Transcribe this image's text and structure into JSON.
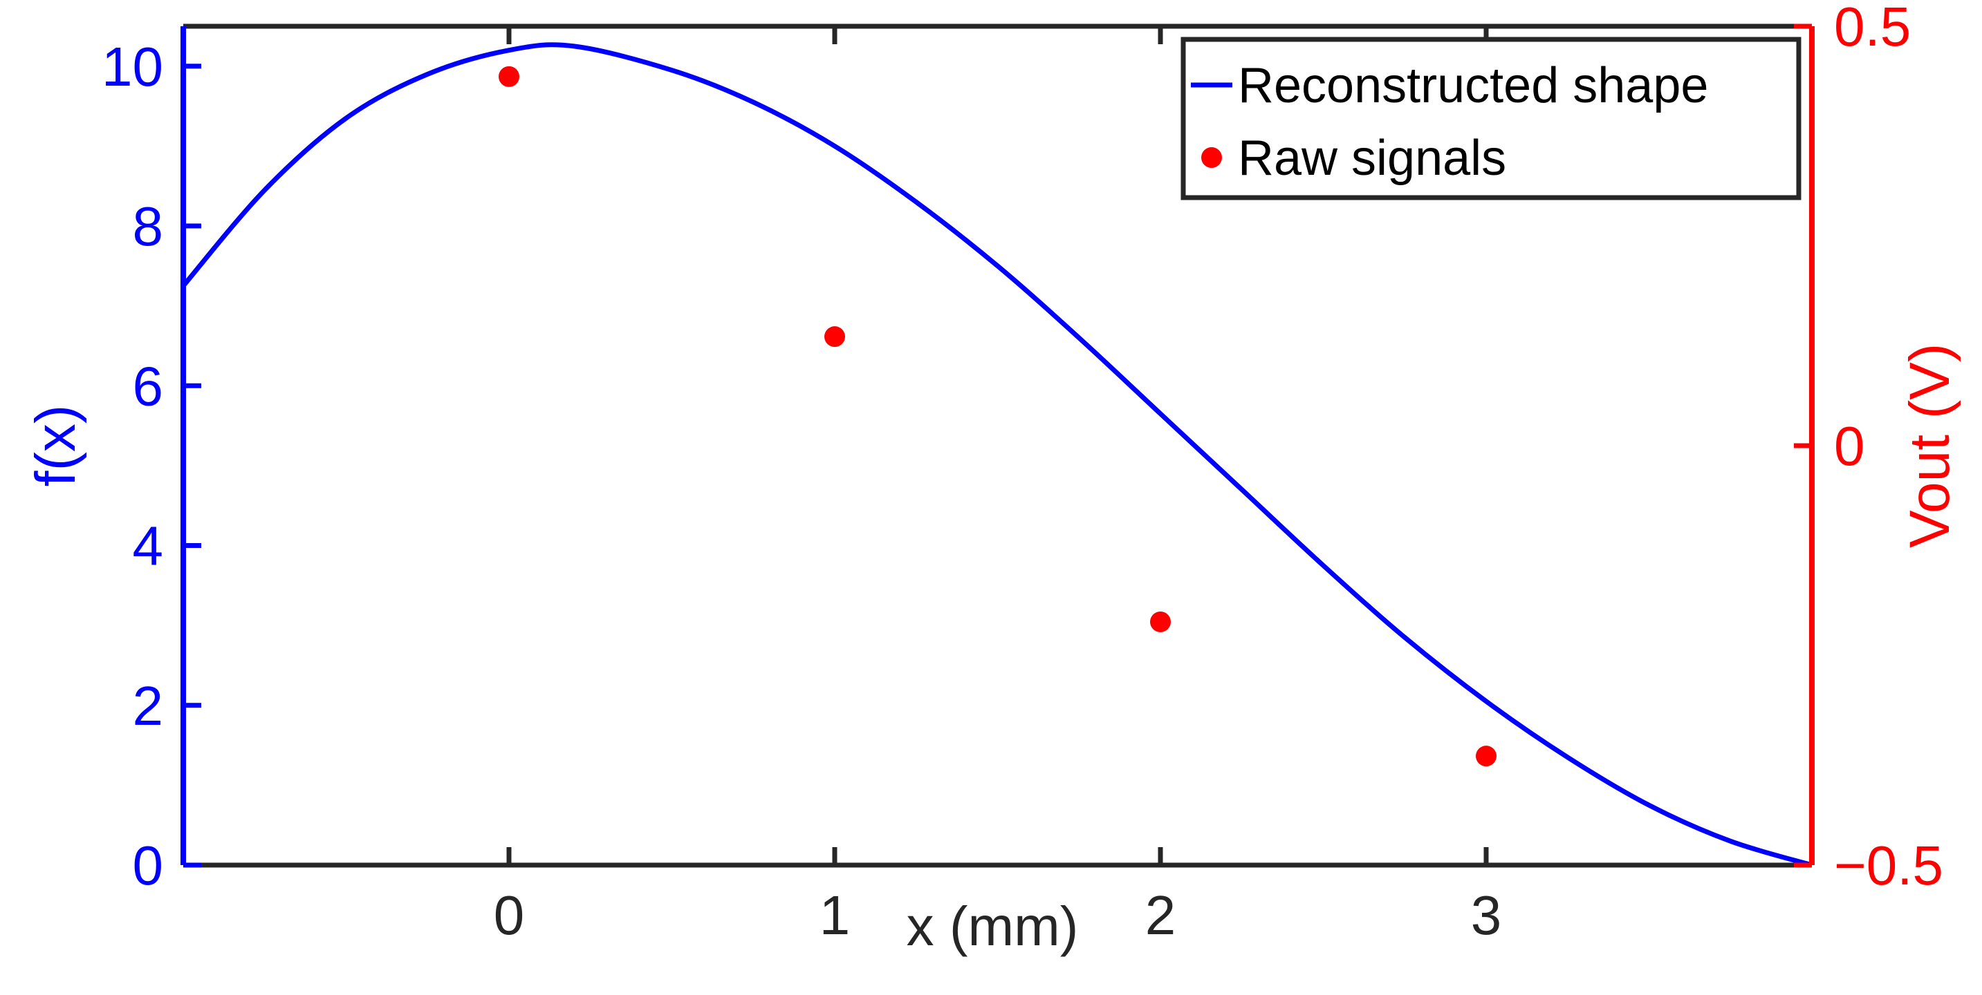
{
  "chart_data": {
    "type": "line+scatter",
    "title": "",
    "xlabel": "x (mm)",
    "ylabel_left": "f(x)",
    "ylabel_right": "Vout (V)",
    "xlim": [
      -1,
      4
    ],
    "ylim_left": [
      0,
      10.5
    ],
    "ylim_right": [
      -0.5,
      0.5
    ],
    "x_ticks": [
      0,
      1,
      2,
      3
    ],
    "x_tick_labels": [
      "0",
      "1",
      "2",
      "3"
    ],
    "y_left_ticks": [
      0,
      2,
      4,
      6,
      8,
      10
    ],
    "y_left_tick_labels": [
      "0",
      "2",
      "4",
      "6",
      "8",
      "10"
    ],
    "y_right_ticks": [
      -0.5,
      0,
      0.5
    ],
    "y_right_tick_labels": [
      "−0.5",
      "0",
      "0.5"
    ],
    "colors": {
      "left_axis": "#0000ff",
      "right_axis": "#ff0000",
      "frame": "#262626"
    },
    "series": [
      {
        "name": "Reconstructed shape",
        "kind": "line",
        "axis": "left",
        "color": "#0000ff",
        "x": [
          -1,
          -0.75,
          -0.5,
          -0.25,
          0,
          0.2,
          0.5,
          0.75,
          1,
          1.25,
          1.5,
          1.75,
          2,
          2.25,
          2.5,
          2.75,
          3,
          3.25,
          3.5,
          3.75,
          4
        ],
        "y": [
          7.25,
          8.45,
          9.35,
          9.9,
          10.2,
          10.25,
          9.95,
          9.55,
          9.0,
          8.3,
          7.5,
          6.6,
          5.65,
          4.7,
          3.75,
          2.85,
          2.05,
          1.35,
          0.75,
          0.3,
          0.0
        ]
      },
      {
        "name": "Raw signals",
        "kind": "scatter",
        "axis": "right",
        "color": "#ff0000",
        "x": [
          0,
          1,
          2,
          3
        ],
        "y": [
          0.44,
          0.13,
          -0.21,
          -0.37
        ]
      }
    ],
    "legend": {
      "position": "top-right",
      "entries": [
        "Reconstructed shape",
        "Raw signals"
      ]
    }
  }
}
